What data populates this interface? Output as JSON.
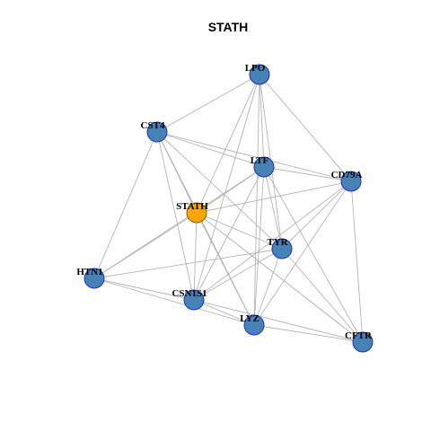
{
  "title": "STATH",
  "colors": {
    "center_node": "#FFA500",
    "node": "#4682B4",
    "node_border": "#1E2FD0",
    "edge": "#B4B4B4"
  },
  "nodes": [
    {
      "id": "LPO",
      "label": "LPO",
      "role": "neighbor"
    },
    {
      "id": "CST4",
      "label": "CST4",
      "role": "neighbor"
    },
    {
      "id": "LTF",
      "label": "LTF",
      "role": "neighbor"
    },
    {
      "id": "CD79A",
      "label": "CD79A",
      "role": "neighbor"
    },
    {
      "id": "STATH",
      "label": "STATH",
      "role": "center"
    },
    {
      "id": "TYR",
      "label": "TYR",
      "role": "neighbor"
    },
    {
      "id": "HTN1",
      "label": "HTN1",
      "role": "neighbor"
    },
    {
      "id": "CSN1S1",
      "label": "CSN1S1",
      "role": "neighbor"
    },
    {
      "id": "LYZ",
      "label": "LYZ",
      "role": "neighbor"
    },
    {
      "id": "CFTR",
      "label": "CFTR",
      "role": "neighbor"
    }
  ],
  "edges": [
    [
      "LPO",
      "CST4"
    ],
    [
      "LPO",
      "LTF"
    ],
    [
      "LPO",
      "CD79A"
    ],
    [
      "LPO",
      "STATH"
    ],
    [
      "LPO",
      "TYR"
    ],
    [
      "LPO",
      "CSN1S1"
    ],
    [
      "LPO",
      "LYZ"
    ],
    [
      "CST4",
      "LTF"
    ],
    [
      "CST4",
      "CD79A"
    ],
    [
      "CST4",
      "STATH"
    ],
    [
      "CST4",
      "TYR"
    ],
    [
      "CST4",
      "HTN1"
    ],
    [
      "CST4",
      "CSN1S1"
    ],
    [
      "CST4",
      "LYZ"
    ],
    [
      "LTF",
      "CD79A"
    ],
    [
      "LTF",
      "STATH"
    ],
    [
      "LTF",
      "TYR"
    ],
    [
      "LTF",
      "HTN1"
    ],
    [
      "LTF",
      "CSN1S1"
    ],
    [
      "LTF",
      "LYZ"
    ],
    [
      "LTF",
      "CFTR"
    ],
    [
      "CD79A",
      "STATH"
    ],
    [
      "CD79A",
      "TYR"
    ],
    [
      "CD79A",
      "CSN1S1"
    ],
    [
      "CD79A",
      "LYZ"
    ],
    [
      "CD79A",
      "CFTR"
    ],
    [
      "STATH",
      "HTN1"
    ],
    [
      "STATH",
      "CSN1S1"
    ],
    [
      "STATH",
      "LYZ"
    ],
    [
      "STATH",
      "CFTR"
    ],
    [
      "STATH",
      "TYR"
    ],
    [
      "TYR",
      "HTN1"
    ],
    [
      "TYR",
      "CSN1S1"
    ],
    [
      "TYR",
      "LYZ"
    ],
    [
      "TYR",
      "CFTR"
    ],
    [
      "HTN1",
      "CSN1S1"
    ],
    [
      "HTN1",
      "LYZ"
    ],
    [
      "CSN1S1",
      "LYZ"
    ],
    [
      "CSN1S1",
      "CFTR"
    ],
    [
      "LYZ",
      "CFTR"
    ]
  ]
}
